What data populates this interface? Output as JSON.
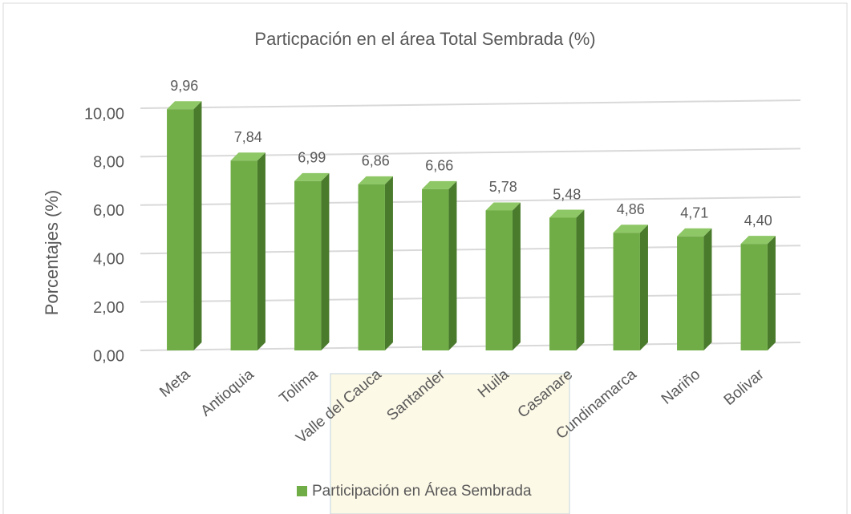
{
  "chart_data": {
    "type": "bar",
    "title": "Particpación en el área Total Sembrada (%)",
    "y_label": "Porcentajes (%)",
    "categories": [
      "Meta",
      "Antioquia",
      "Tolima",
      "Valle del Cauca",
      "Santander",
      "Huila",
      "Casanare",
      "Cundinamarca",
      "Nariño",
      "Bolivar"
    ],
    "series": [
      {
        "name": "Participación en Área Sembrada",
        "color": "#70ad47",
        "values": [
          9.96,
          7.84,
          6.99,
          6.86,
          6.66,
          5.78,
          5.48,
          4.86,
          4.71,
          4.4
        ],
        "value_labels": [
          "9,96",
          "7,84",
          "6,99",
          "6,86",
          "6,66",
          "5,78",
          "5,48",
          "4,86",
          "4,71",
          "4,40"
        ]
      }
    ],
    "ylim": [
      0,
      10
    ],
    "yticks": [
      {
        "value": 0,
        "label": "0,00"
      },
      {
        "value": 2,
        "label": "2,00"
      },
      {
        "value": 4,
        "label": "4,00"
      },
      {
        "value": 6,
        "label": "6,00"
      },
      {
        "value": 8,
        "label": "8,00"
      },
      {
        "value": 10,
        "label": "10,00"
      }
    ],
    "grid": true,
    "legend": "bottom"
  }
}
